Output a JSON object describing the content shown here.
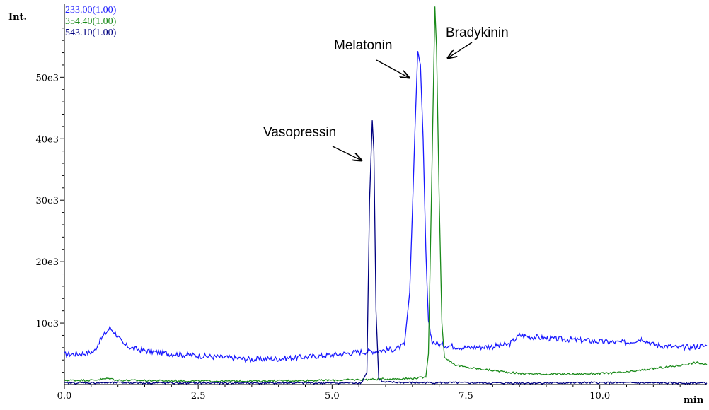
{
  "chart_data": {
    "type": "line",
    "xlabel": "min",
    "ylabel": "Int.",
    "xlim": [
      0.0,
      12.0
    ],
    "ylim": [
      0,
      62000
    ],
    "x_ticks": [
      0.0,
      2.5,
      5.0,
      7.5,
      10.0
    ],
    "x_tick_labels": [
      "0.0",
      "2.5",
      "5.0",
      "7.5",
      "10.0"
    ],
    "y_ticks": [
      10000,
      20000,
      30000,
      40000,
      50000
    ],
    "y_tick_labels": [
      "10e3",
      "20e3",
      "30e3",
      "40e3",
      "50e3"
    ],
    "grid": false,
    "legend_position": "top-left",
    "series": [
      {
        "name": "233.00(1.00)",
        "color": "#1a1aff",
        "points": [
          [
            0.0,
            4900
          ],
          [
            0.3,
            5000
          ],
          [
            0.55,
            5300
          ],
          [
            0.65,
            7000
          ],
          [
            0.75,
            8200
          ],
          [
            0.85,
            9200
          ],
          [
            0.95,
            8400
          ],
          [
            1.1,
            6500
          ],
          [
            1.3,
            5800
          ],
          [
            1.6,
            5400
          ],
          [
            2.0,
            5000
          ],
          [
            2.5,
            4700
          ],
          [
            3.0,
            4400
          ],
          [
            3.5,
            4100
          ],
          [
            4.0,
            4200
          ],
          [
            4.5,
            4500
          ],
          [
            5.0,
            4800
          ],
          [
            5.4,
            5200
          ],
          [
            5.7,
            5400
          ],
          [
            6.0,
            5600
          ],
          [
            6.2,
            5800
          ],
          [
            6.35,
            6500
          ],
          [
            6.45,
            15000
          ],
          [
            6.5,
            28000
          ],
          [
            6.55,
            42000
          ],
          [
            6.6,
            54000
          ],
          [
            6.65,
            52000
          ],
          [
            6.7,
            40000
          ],
          [
            6.75,
            22000
          ],
          [
            6.8,
            10000
          ],
          [
            6.87,
            7000
          ],
          [
            7.0,
            6500
          ],
          [
            7.5,
            6000
          ],
          [
            8.0,
            6200
          ],
          [
            8.3,
            6500
          ],
          [
            8.5,
            8000
          ],
          [
            9.0,
            7500
          ],
          [
            9.5,
            7300
          ],
          [
            10.0,
            7000
          ],
          [
            10.5,
            6800
          ],
          [
            10.8,
            7500
          ],
          [
            11.0,
            6500
          ],
          [
            11.5,
            6000
          ],
          [
            12.0,
            6300
          ]
        ]
      },
      {
        "name": "354.40(1.00)",
        "color": "#1a8a1a",
        "points": [
          [
            0.0,
            700
          ],
          [
            0.5,
            700
          ],
          [
            0.85,
            1000
          ],
          [
            1.0,
            700
          ],
          [
            2.0,
            600
          ],
          [
            3.0,
            550
          ],
          [
            4.0,
            600
          ],
          [
            5.0,
            700
          ],
          [
            5.5,
            800
          ],
          [
            6.0,
            900
          ],
          [
            6.5,
            1000
          ],
          [
            6.75,
            1200
          ],
          [
            6.8,
            5000
          ],
          [
            6.85,
            28000
          ],
          [
            6.9,
            52000
          ],
          [
            6.92,
            61500
          ],
          [
            6.95,
            55000
          ],
          [
            7.0,
            30000
          ],
          [
            7.05,
            10000
          ],
          [
            7.1,
            4500
          ],
          [
            7.3,
            3200
          ],
          [
            7.5,
            2800
          ],
          [
            8.0,
            2300
          ],
          [
            8.5,
            1800
          ],
          [
            9.0,
            1700
          ],
          [
            9.5,
            1700
          ],
          [
            10.0,
            1800
          ],
          [
            10.5,
            2000
          ],
          [
            11.0,
            2600
          ],
          [
            11.5,
            3100
          ],
          [
            11.8,
            3600
          ],
          [
            12.0,
            3200
          ]
        ]
      },
      {
        "name": "543.10(1.00)",
        "color": "#000080",
        "points": [
          [
            0.0,
            250
          ],
          [
            1.0,
            300
          ],
          [
            2.0,
            250
          ],
          [
            3.0,
            250
          ],
          [
            4.0,
            250
          ],
          [
            5.0,
            250
          ],
          [
            5.55,
            300
          ],
          [
            5.65,
            2000
          ],
          [
            5.7,
            30000
          ],
          [
            5.75,
            43000
          ],
          [
            5.78,
            38000
          ],
          [
            5.82,
            12000
          ],
          [
            5.87,
            1000
          ],
          [
            5.95,
            400
          ],
          [
            6.5,
            300
          ],
          [
            7.0,
            300
          ],
          [
            8.0,
            250
          ],
          [
            9.0,
            250
          ],
          [
            10.0,
            300
          ],
          [
            11.0,
            250
          ],
          [
            12.0,
            250
          ]
        ]
      }
    ],
    "annotations": [
      {
        "text": "Vasopressin",
        "x": 5.75,
        "y": 43000
      },
      {
        "text": "Melatonin",
        "x": 6.6,
        "y": 54000
      },
      {
        "text": "Bradykinin",
        "x": 6.92,
        "y": 61500
      }
    ]
  }
}
